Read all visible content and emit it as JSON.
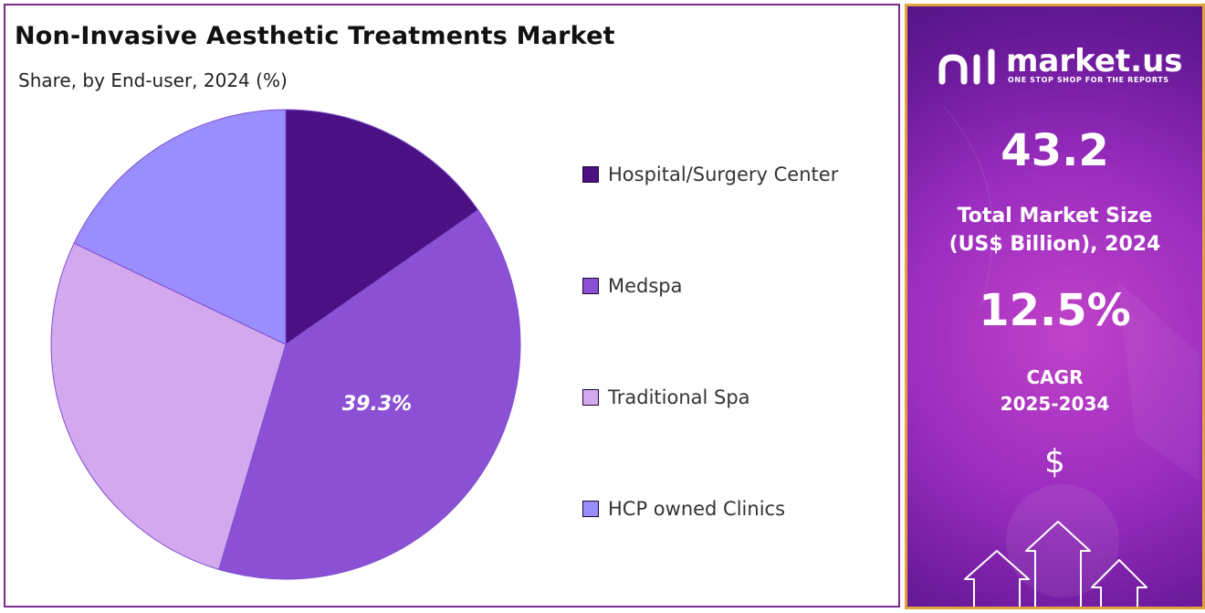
{
  "chart_data": {
    "type": "pie",
    "title": "Non-Invasive Aesthetic Treatments Market",
    "subtitle": "Share, by End-user, 2024 (%)",
    "categories": [
      "Hospital/Surgery Center",
      "Medspa",
      "Traditional Spa",
      "HCP owned Clinics"
    ],
    "values": [
      15.3,
      39.3,
      27.5,
      17.9
    ],
    "colors": [
      "#4b1182",
      "#8c50d4",
      "#d3a8ee",
      "#9a8dfc"
    ],
    "data_labels": [
      "",
      "39.3%",
      "",
      ""
    ],
    "legend_position": "right"
  },
  "side_panel": {
    "brand_name": "market.us",
    "brand_tagline": "ONE STOP SHOP FOR THE REPORTS",
    "market_size_value": "43.2",
    "market_size_label_line1": "Total Market Size",
    "market_size_label_line2": "(US$ Billion), 2024",
    "cagr_value": "12.5%",
    "cagr_label_line1": "CAGR",
    "cagr_label_line2": "2025-2034",
    "currency_symbol": "$",
    "icons": [
      "market-us-logo-icon",
      "up-arrow-icon"
    ]
  }
}
